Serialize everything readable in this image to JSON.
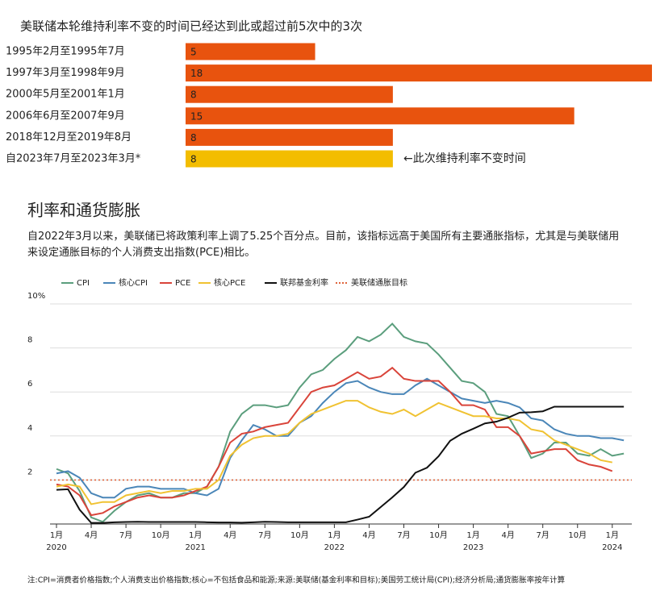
{
  "chart_data": [
    {
      "type": "bar",
      "orientation": "horizontal",
      "title": "美联储本轮维持利率不变的时间已经达到此或超过前5次中的3次",
      "categories": [
        "1995年2月至1995年7月",
        "1997年3月至1998年9月",
        "2000年5月至2001年1月",
        "2006年6月至2007年9月",
        "2018年12月至2019年8月",
        "自2023年7月至2023年3月*"
      ],
      "values": [
        5,
        18,
        8,
        15,
        8,
        8
      ],
      "colors": [
        "#e8530e",
        "#e8530e",
        "#e8530e",
        "#e8530e",
        "#e8530e",
        "#f3bd00"
      ],
      "annotation": "←此次维持利率不变时间"
    },
    {
      "type": "line",
      "title": "利率和通货膨胀",
      "subtitle": "自2022年3月以来，美联储已将政策利率上调了5.25个百分点。目前，该指标远高于美国所有主要通胀指标，尤其是与美联储用来设定通胀目标的个人消费支出指数(PCE)相比。",
      "note": "注:CPI=消费者价格指数;个人消费支出价格指数;核心=不包括食品和能源;来源:美联储(基金利率和目标);美国劳工统计局(CPI);经济分析局;通货膨胀率按年计算",
      "x": [
        "2020-01",
        "2020-02",
        "2020-03",
        "2020-04",
        "2020-05",
        "2020-06",
        "2020-07",
        "2020-08",
        "2020-09",
        "2020-10",
        "2020-11",
        "2020-12",
        "2021-01",
        "2021-02",
        "2021-03",
        "2021-04",
        "2021-05",
        "2021-06",
        "2021-07",
        "2021-08",
        "2021-09",
        "2021-10",
        "2021-11",
        "2021-12",
        "2022-01",
        "2022-02",
        "2022-03",
        "2022-04",
        "2022-05",
        "2022-06",
        "2022-07",
        "2022-08",
        "2022-09",
        "2022-10",
        "2022-11",
        "2022-12",
        "2023-01",
        "2023-02",
        "2023-03",
        "2023-04",
        "2023-05",
        "2023-06",
        "2023-07",
        "2023-08",
        "2023-09",
        "2023-10",
        "2023-11",
        "2023-12",
        "2024-01",
        "2024-02"
      ],
      "series": [
        {
          "name": "CPI",
          "color": "#5b9e7d",
          "values": [
            2.5,
            2.3,
            1.5,
            0.3,
            0.1,
            0.6,
            1.0,
            1.3,
            1.4,
            1.2,
            1.2,
            1.4,
            1.4,
            1.7,
            2.6,
            4.2,
            5.0,
            5.4,
            5.4,
            5.3,
            5.4,
            6.2,
            6.8,
            7.0,
            7.5,
            7.9,
            8.5,
            8.3,
            8.6,
            9.1,
            8.5,
            8.3,
            8.2,
            7.7,
            7.1,
            6.5,
            6.4,
            6.0,
            5.0,
            4.9,
            4.0,
            3.0,
            3.2,
            3.7,
            3.7,
            3.2,
            3.1,
            3.4,
            3.1,
            3.2
          ]
        },
        {
          "name": "核心CPI",
          "color": "#4a86b8",
          "values": [
            2.3,
            2.4,
            2.1,
            1.4,
            1.2,
            1.2,
            1.6,
            1.7,
            1.7,
            1.6,
            1.6,
            1.6,
            1.4,
            1.3,
            1.6,
            3.0,
            3.8,
            4.5,
            4.3,
            4.0,
            4.0,
            4.6,
            4.9,
            5.5,
            6.0,
            6.4,
            6.5,
            6.2,
            6.0,
            5.9,
            5.9,
            6.3,
            6.6,
            6.3,
            6.0,
            5.7,
            5.6,
            5.5,
            5.6,
            5.5,
            5.3,
            4.8,
            4.7,
            4.3,
            4.1,
            4.0,
            4.0,
            3.9,
            3.9,
            3.8
          ]
        },
        {
          "name": "PCE",
          "color": "#d9443a",
          "values": [
            1.8,
            1.7,
            1.3,
            0.4,
            0.5,
            0.8,
            1.0,
            1.2,
            1.3,
            1.2,
            1.2,
            1.3,
            1.5,
            1.7,
            2.6,
            3.7,
            4.1,
            4.2,
            4.4,
            4.5,
            4.6,
            5.3,
            6.0,
            6.2,
            6.3,
            6.6,
            6.9,
            6.6,
            6.7,
            7.1,
            6.6,
            6.5,
            6.5,
            6.5,
            6.0,
            5.4,
            5.4,
            5.2,
            4.4,
            4.4,
            4.0,
            3.2,
            3.3,
            3.4,
            3.4,
            2.9,
            2.7,
            2.6,
            2.4,
            null
          ]
        },
        {
          "name": "核心PCE",
          "color": "#f0c232",
          "values": [
            1.7,
            1.8,
            1.7,
            0.9,
            1.0,
            1.0,
            1.3,
            1.4,
            1.5,
            1.4,
            1.5,
            1.5,
            1.6,
            1.6,
            2.0,
            3.1,
            3.6,
            3.9,
            4.0,
            4.0,
            4.1,
            4.6,
            5.0,
            5.2,
            5.4,
            5.6,
            5.6,
            5.3,
            5.1,
            5.0,
            5.2,
            4.9,
            5.2,
            5.5,
            5.3,
            5.1,
            4.9,
            4.9,
            4.8,
            4.8,
            4.7,
            4.3,
            4.2,
            3.8,
            3.6,
            3.4,
            3.2,
            2.9,
            2.8,
            null
          ]
        },
        {
          "name": "联邦基金利率",
          "color": "#111111",
          "values": [
            1.55,
            1.58,
            0.65,
            0.05,
            0.05,
            0.08,
            0.09,
            0.1,
            0.09,
            0.09,
            0.09,
            0.09,
            0.09,
            0.08,
            0.07,
            0.07,
            0.06,
            0.08,
            0.1,
            0.09,
            0.08,
            0.08,
            0.08,
            0.08,
            0.08,
            0.08,
            0.2,
            0.33,
            0.77,
            1.21,
            1.68,
            2.33,
            2.56,
            3.08,
            3.78,
            4.1,
            4.33,
            4.57,
            4.65,
            4.83,
            5.06,
            5.08,
            5.12,
            5.33,
            5.33,
            5.33,
            5.33,
            5.33,
            5.33,
            5.33
          ]
        }
      ],
      "target": {
        "name": "美联储通胀目标",
        "color": "#e0643c",
        "value": 2
      },
      "ylim": [
        0,
        10
      ],
      "yticks": [
        2,
        4,
        6,
        8,
        {
          "value": 10,
          "label": "10%"
        }
      ],
      "xticks": [
        {
          "value": "2020-01",
          "label": "1月"
        },
        {
          "value": "2020-04",
          "label": "4月"
        },
        {
          "value": "2020-07",
          "label": "7月"
        },
        {
          "value": "2020-10",
          "label": "10月"
        },
        {
          "value": "2021-01",
          "label": "1月"
        },
        {
          "value": "2021-04",
          "label": "4月"
        },
        {
          "value": "2021-07",
          "label": "7月"
        },
        {
          "value": "2021-10",
          "label": "10月"
        },
        {
          "value": "2022-01",
          "label": "1月"
        },
        {
          "value": "2022-04",
          "label": "4月"
        },
        {
          "value": "2022-07",
          "label": "7月"
        },
        {
          "value": "2022-10",
          "label": "10月"
        },
        {
          "value": "2023-01",
          "label": "1月"
        },
        {
          "value": "2023-04",
          "label": "4月"
        },
        {
          "value": "2023-07",
          "label": "7月"
        },
        {
          "value": "2023-10",
          "label": "10月"
        },
        {
          "value": "2024-01",
          "label": "1月"
        }
      ],
      "xtick_years": [
        {
          "value": "2020-01",
          "label": "2020"
        },
        {
          "value": "2021-01",
          "label": "2021"
        },
        {
          "value": "2022-01",
          "label": "2022"
        },
        {
          "value": "2023-01",
          "label": "2023"
        },
        {
          "value": "2024-01",
          "label": "2024"
        }
      ],
      "grid": true
    }
  ]
}
